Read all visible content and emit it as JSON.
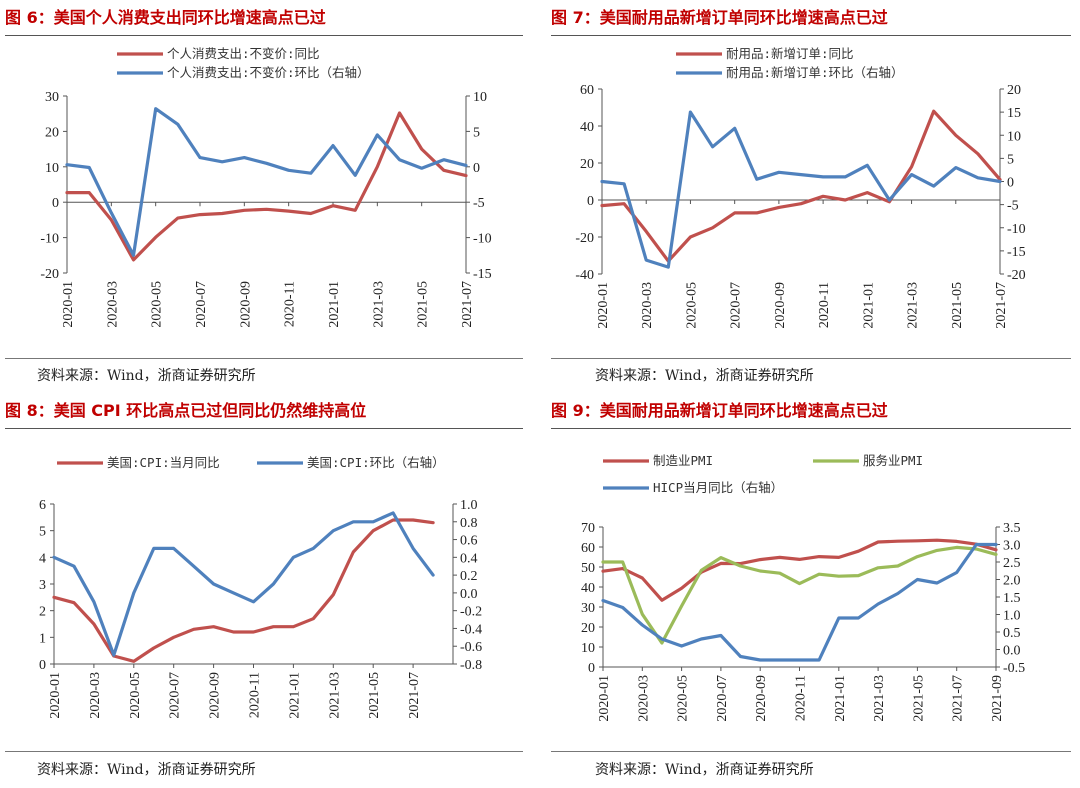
{
  "source_note": "资料来源：Wind，浙商证券研究所",
  "chart_data": [
    {
      "id": "fig6",
      "type": "line",
      "title": "图 6：美国个人消费支出同环比增速高点已过",
      "categories": [
        "2020-01",
        "2020-02",
        "2020-03",
        "2020-04",
        "2020-05",
        "2020-06",
        "2020-07",
        "2020-08",
        "2020-09",
        "2020-10",
        "2020-11",
        "2020-12",
        "2021-01",
        "2021-02",
        "2021-03",
        "2021-04",
        "2021-05",
        "2021-06",
        "2021-07"
      ],
      "x_tick_labels": [
        "2020-01",
        "2020-03",
        "2020-05",
        "2020-07",
        "2020-09",
        "2020-11",
        "2021-01",
        "2021-03",
        "2021-05",
        "2021-07"
      ],
      "left_axis": {
        "min": -20,
        "max": 30,
        "ticks": [
          -20,
          -10,
          0,
          10,
          20,
          30
        ]
      },
      "right_axis": {
        "min": -15,
        "max": 10,
        "ticks": [
          -15,
          -10,
          -5,
          0,
          5,
          10
        ]
      },
      "series": [
        {
          "name": "个人消费支出:不变价:同比",
          "color": "#c0504d",
          "axis": "left",
          "values": [
            2.7,
            2.7,
            -5.0,
            -16.3,
            -9.9,
            -4.5,
            -3.5,
            -3.2,
            -2.3,
            -2.0,
            -2.5,
            -3.2,
            -1.0,
            -2.3,
            10.0,
            25.2,
            15.0,
            9.0,
            7.5
          ]
        },
        {
          "name": "个人消费支出:不变价:环比（右轴）",
          "color": "#4f81bd",
          "axis": "right",
          "values": [
            0.3,
            -0.1,
            -6.5,
            -12.5,
            8.2,
            6.0,
            1.3,
            0.7,
            1.3,
            0.5,
            -0.5,
            -0.9,
            3.0,
            -1.2,
            4.5,
            1.0,
            -0.2,
            1.0,
            0.2
          ]
        }
      ]
    },
    {
      "id": "fig7",
      "type": "line",
      "title": "图 7：美国耐用品新增订单同环比增速高点已过",
      "categories": [
        "2020-01",
        "2020-02",
        "2020-03",
        "2020-04",
        "2020-05",
        "2020-06",
        "2020-07",
        "2020-08",
        "2020-09",
        "2020-10",
        "2020-11",
        "2020-12",
        "2021-01",
        "2021-02",
        "2021-03",
        "2021-04",
        "2021-05",
        "2021-06",
        "2021-07"
      ],
      "x_tick_labels": [
        "2020-01",
        "2020-03",
        "2020-05",
        "2020-07",
        "2020-09",
        "2020-11",
        "2021-01",
        "2021-03",
        "2021-05",
        "2021-07"
      ],
      "left_axis": {
        "min": -40,
        "max": 60,
        "ticks": [
          -40,
          -20,
          0,
          20,
          40,
          60
        ]
      },
      "right_axis": {
        "min": -20,
        "max": 20,
        "ticks": [
          -20,
          -15,
          -10,
          -5,
          0,
          5,
          10,
          15,
          20
        ]
      },
      "series": [
        {
          "name": "耐用品:新增订单:同比",
          "color": "#c0504d",
          "axis": "left",
          "values": [
            -3,
            -2,
            -17,
            -33,
            -20,
            -15,
            -7,
            -7,
            -4,
            -2,
            2,
            0,
            4,
            -1,
            18,
            48,
            35,
            25,
            11
          ]
        },
        {
          "name": "耐用品:新增订单:环比（右轴）",
          "color": "#4f81bd",
          "axis": "right",
          "values": [
            0.0,
            -0.5,
            -17,
            -18.5,
            15.0,
            7.5,
            11.5,
            0.5,
            2.0,
            1.5,
            1.0,
            1.0,
            3.5,
            -4.0,
            1.5,
            -1.0,
            3.0,
            0.8,
            0.0
          ]
        }
      ]
    },
    {
      "id": "fig8",
      "type": "line",
      "title": "图 8：美国 CPI 环比高点已过但同比仍然维持高位",
      "categories": [
        "2020-01",
        "2020-02",
        "2020-03",
        "2020-04",
        "2020-05",
        "2020-06",
        "2020-07",
        "2020-08",
        "2020-09",
        "2020-10",
        "2020-11",
        "2020-12",
        "2021-01",
        "2021-02",
        "2021-03",
        "2021-04",
        "2021-05",
        "2021-06",
        "2021-07",
        "2021-08"
      ],
      "x_tick_labels": [
        "2020-01",
        "2020-03",
        "2020-05",
        "2020-07",
        "2020-09",
        "2020-11",
        "2021-01",
        "2021-03",
        "2021-05",
        "2021-07"
      ],
      "left_axis": {
        "min": 0,
        "max": 6,
        "ticks": [
          0,
          1,
          2,
          3,
          4,
          5,
          6
        ]
      },
      "right_axis": {
        "min": -0.8,
        "max": 1.0,
        "ticks": [
          -0.8,
          -0.6,
          -0.4,
          -0.2,
          0.0,
          0.2,
          0.4,
          0.6,
          0.8,
          1.0
        ]
      },
      "series": [
        {
          "name": "美国:CPI:当月同比",
          "color": "#c0504d",
          "axis": "left",
          "values": [
            2.5,
            2.3,
            1.5,
            0.3,
            0.1,
            0.6,
            1.0,
            1.3,
            1.4,
            1.2,
            1.2,
            1.4,
            1.4,
            1.7,
            2.6,
            4.2,
            5.0,
            5.4,
            5.4,
            5.3
          ]
        },
        {
          "name": "美国:CPI:环比（右轴）",
          "color": "#4f81bd",
          "axis": "right",
          "values": [
            0.4,
            0.3,
            -0.1,
            -0.7,
            0.0,
            0.5,
            0.5,
            0.3,
            0.1,
            0.0,
            -0.1,
            0.1,
            0.4,
            0.5,
            0.7,
            0.8,
            0.8,
            0.9,
            0.5,
            0.2
          ]
        }
      ]
    },
    {
      "id": "fig9",
      "type": "line",
      "title": "图 9：美国耐用品新增订单同环比增速高点已过",
      "categories": [
        "2020-01",
        "2020-02",
        "2020-03",
        "2020-04",
        "2020-05",
        "2020-06",
        "2020-07",
        "2020-08",
        "2020-09",
        "2020-10",
        "2020-11",
        "2020-12",
        "2021-01",
        "2021-02",
        "2021-03",
        "2021-04",
        "2021-05",
        "2021-06",
        "2021-07",
        "2021-08",
        "2021-09"
      ],
      "x_tick_labels": [
        "2020-01",
        "2020-03",
        "2020-05",
        "2020-07",
        "2020-09",
        "2020-11",
        "2021-01",
        "2021-03",
        "2021-05",
        "2021-07",
        "2021-09"
      ],
      "left_axis": {
        "min": 0,
        "max": 70,
        "ticks": [
          0,
          10,
          20,
          30,
          40,
          50,
          60,
          70
        ]
      },
      "right_axis": {
        "min": -0.5,
        "max": 3.5,
        "ticks": [
          -0.5,
          0.0,
          0.5,
          1.0,
          1.5,
          2.0,
          2.5,
          3.0,
          3.5
        ]
      },
      "series": [
        {
          "name": "制造业PMI",
          "color": "#c0504d",
          "axis": "left",
          "values": [
            47.9,
            49.2,
            44.5,
            33.4,
            39.4,
            47.4,
            51.8,
            51.7,
            53.7,
            54.8,
            53.8,
            55.2,
            54.8,
            57.9,
            62.5,
            62.9,
            63.1,
            63.4,
            62.8,
            61.4,
            58.6
          ]
        },
        {
          "name": "服务业PMI",
          "color": "#9bbb59",
          "axis": "left",
          "values": [
            52.5,
            52.5,
            26.4,
            12.0,
            30.5,
            48.3,
            54.7,
            50.5,
            48.0,
            46.9,
            41.7,
            46.4,
            45.4,
            45.7,
            49.6,
            50.5,
            55.2,
            58.3,
            59.8,
            59.0,
            56.3
          ]
        },
        {
          "name": "HICP当月同比（右轴）",
          "color": "#4f81bd",
          "axis": "right",
          "values": [
            1.4,
            1.2,
            0.7,
            0.3,
            0.1,
            0.3,
            0.4,
            -0.2,
            -0.3,
            -0.3,
            -0.3,
            -0.3,
            0.9,
            0.9,
            1.3,
            1.6,
            2.0,
            1.9,
            2.2,
            3.0,
            3.0
          ]
        }
      ]
    }
  ]
}
